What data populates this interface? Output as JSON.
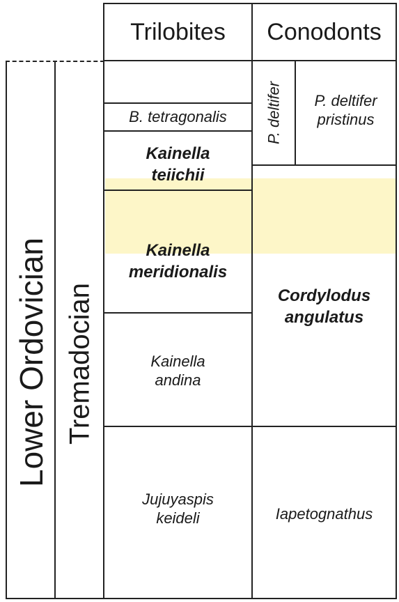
{
  "headers": {
    "trilobites": "Trilobites",
    "conodonts": "Conodonts"
  },
  "chronostratigraphy": {
    "series": "Lower Ordovician",
    "stage": "Tremadocian"
  },
  "trilobite_zones": [
    {
      "line1": "B. tetragonalis",
      "line2": "",
      "style": "italic"
    },
    {
      "line1": "Kainella",
      "line2": "teiichii",
      "style": "bold-italic"
    },
    {
      "line1": "Kainella",
      "line2": "meridionalis",
      "style": "bold-italic"
    },
    {
      "line1": "Kainella",
      "line2": "andina",
      "style": "italic"
    },
    {
      "line1": "Jujuyaspis",
      "line2": "keideli",
      "style": "italic"
    }
  ],
  "conodont_zones": [
    {
      "line1": "P. deltifer",
      "line2": "",
      "style": "italic",
      "orientation": "vertical"
    },
    {
      "line1": "P. deltifer",
      "line2": "pristinus",
      "style": "italic"
    },
    {
      "line1": "Cordylodus",
      "line2": "angulatus",
      "style": "bold-italic"
    },
    {
      "line1": "Iapetognathus",
      "line2": "",
      "style": "italic"
    }
  ],
  "colors": {
    "highlight": "#fdf6c8",
    "lines": "#222222",
    "text": "#1a1a1a"
  }
}
